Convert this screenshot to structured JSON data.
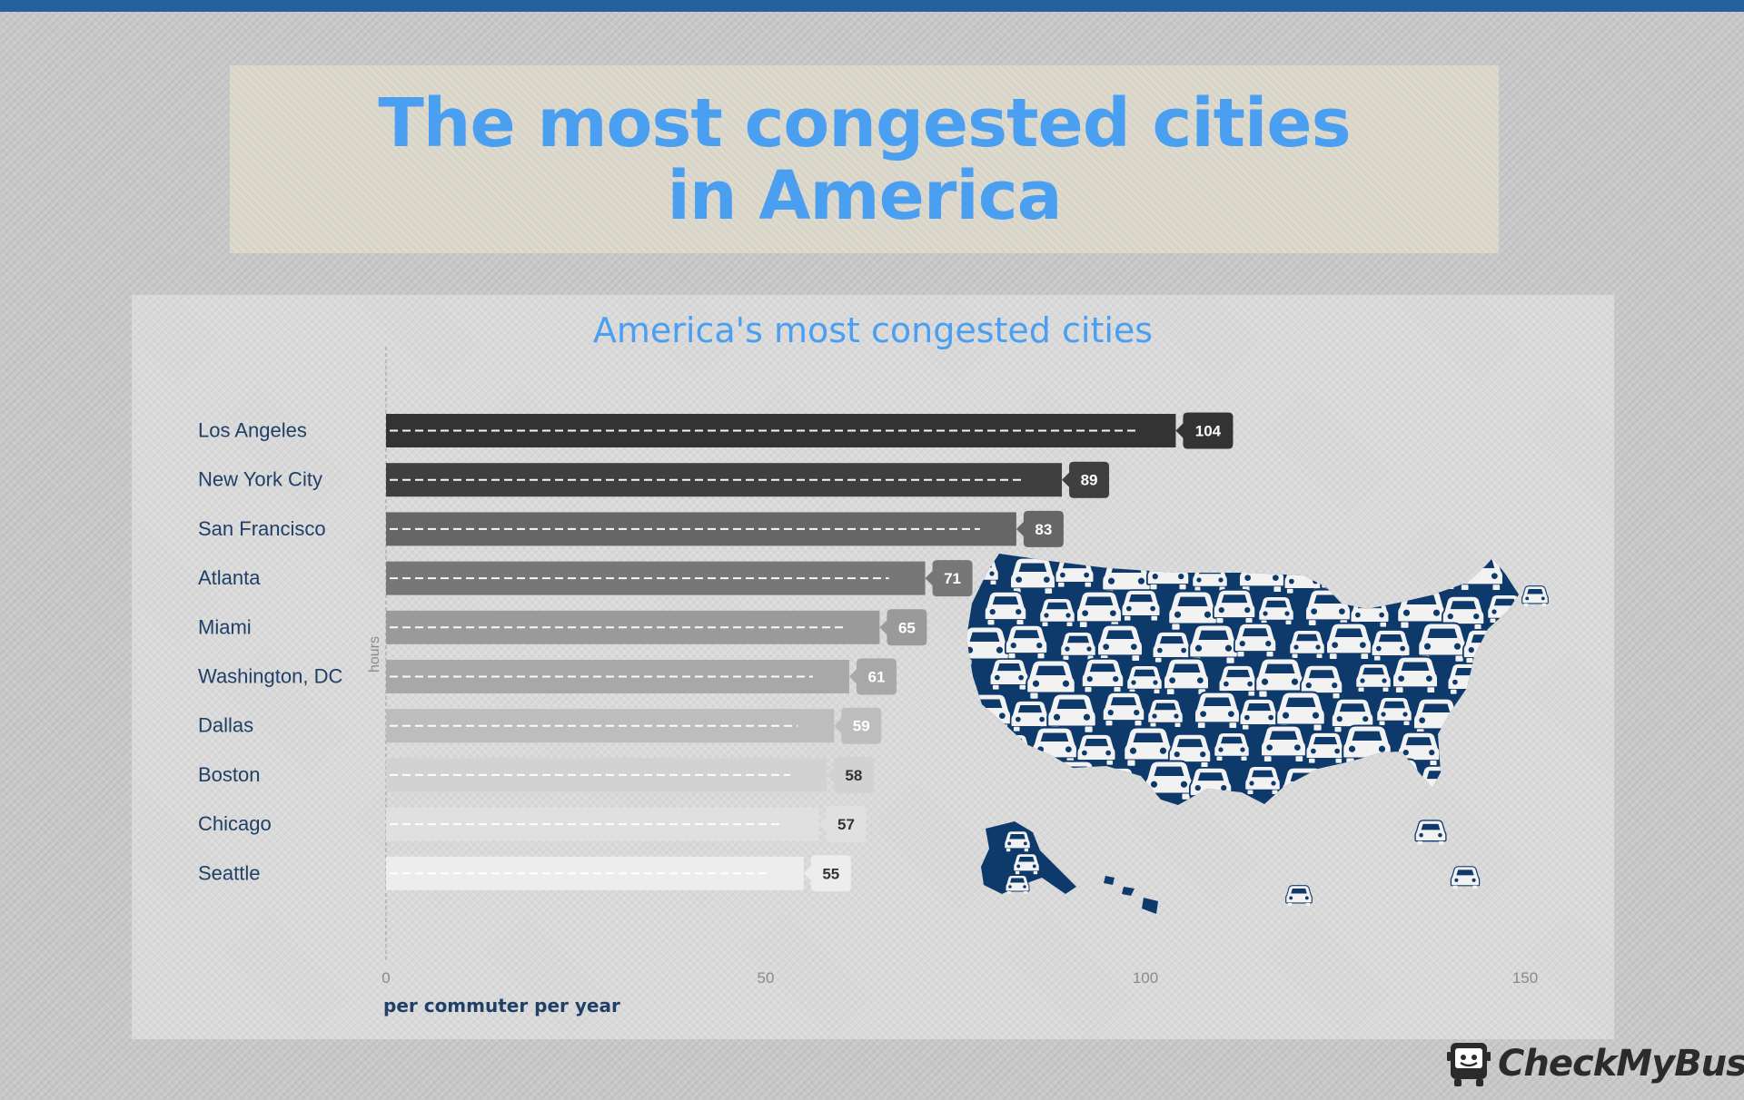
{
  "header": {
    "title": "The most congested cities in America"
  },
  "chart_data": {
    "type": "bar",
    "orientation": "horizontal",
    "title": "America's most congested cities",
    "categories": [
      "Los Angeles",
      "New York City",
      "San Francisco",
      "Atlanta",
      "Miami",
      "Washington, DC",
      "Dallas",
      "Boston",
      "Chicago",
      "Seattle"
    ],
    "values": [
      104,
      89,
      83,
      71,
      65,
      61,
      59,
      58,
      57,
      55
    ],
    "data_labels": [
      "104",
      "89",
      "83",
      "71",
      "65",
      "61",
      "59",
      "58",
      "57",
      "55"
    ],
    "bar_colors": [
      "#333333",
      "#3f3f3f",
      "#666666",
      "#777777",
      "#9a9a9a",
      "#a8a8a8",
      "#bdbdbd",
      "#d2d2d2",
      "#e0e0e0",
      "#ededed"
    ],
    "label_colors": [
      "#ffffff",
      "#ffffff",
      "#ffffff",
      "#ffffff",
      "#ffffff",
      "#ffffff",
      "#ffffff",
      "#333333",
      "#333333",
      "#333333"
    ],
    "xlabel": "per commuter per year",
    "ylabel": "hours",
    "xlim": [
      0,
      150
    ],
    "xticks": [
      0,
      50,
      100,
      150
    ],
    "xtick_labels": [
      "0",
      "50",
      "100",
      "150"
    ],
    "grid": false,
    "legend": "none",
    "decoration": "usa-map-cars-illustration"
  },
  "colors": {
    "top_bar": "#23609d",
    "title": "#4a9ff0",
    "chart_title": "#4a9ff0",
    "category_label": "#1f3f66",
    "map": "#0e3a6b",
    "car": "#f2f2f2"
  },
  "logo": {
    "text": "CheckMyBus",
    "icon": "bus-logo-icon"
  }
}
